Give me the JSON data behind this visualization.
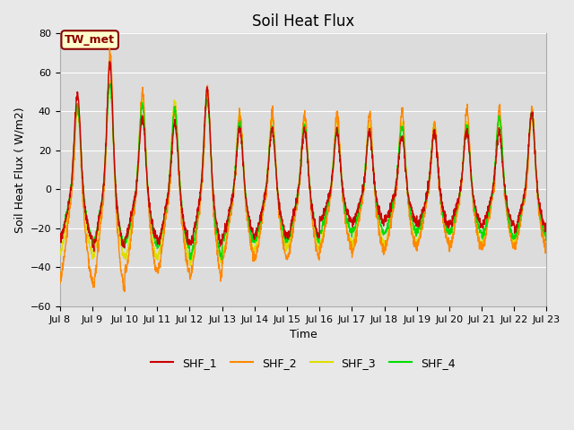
{
  "title": "Soil Heat Flux",
  "xlabel": "Time",
  "ylabel": "Soil Heat Flux ( W/m2)",
  "ylim": [
    -60,
    80
  ],
  "yticks": [
    -60,
    -40,
    -20,
    0,
    20,
    40,
    60,
    80
  ],
  "xtick_labels": [
    "Jul 8",
    "Jul 9",
    "Jul 10",
    "Jul 11",
    "Jul 12",
    "Jul 13",
    "Jul 14",
    "Jul 15",
    "Jul 16",
    "Jul 17",
    "Jul 18",
    "Jul 19",
    "Jul 20",
    "Jul 21",
    "Jul 22",
    "Jul 23"
  ],
  "line_colors": {
    "SHF_1": "#cc0000",
    "SHF_2": "#ff8800",
    "SHF_3": "#dddd00",
    "SHF_4": "#00dd00"
  },
  "legend_label": "TW_met",
  "legend_box_facecolor": "#ffffcc",
  "legend_box_edgecolor": "#8b0000",
  "fig_facecolor": "#e8e8e8",
  "plot_facecolor": "#dcdcdc",
  "title_fontsize": 12,
  "axis_label_fontsize": 9,
  "tick_fontsize": 8,
  "day_amplitudes": {
    "SHF_1": [
      50,
      65,
      38,
      35,
      52,
      32,
      31,
      31,
      29,
      30,
      28,
      30,
      30,
      30,
      40,
      28
    ],
    "SHF_2": [
      45,
      72,
      52,
      43,
      53,
      40,
      40,
      40,
      40,
      40,
      42,
      35,
      42,
      42,
      42,
      38
    ],
    "SHF_3": [
      44,
      56,
      47,
      47,
      48,
      40,
      38,
      37,
      36,
      35,
      35,
      34,
      35,
      36,
      38,
      30
    ],
    "SHF_4": [
      44,
      55,
      44,
      42,
      47,
      35,
      33,
      34,
      31,
      30,
      33,
      30,
      33,
      38,
      40,
      30
    ]
  },
  "day_night_amps": {
    "SHF_1": [
      -25,
      -30,
      -25,
      -28,
      -28,
      -24,
      -23,
      -24,
      -16,
      -17,
      -16,
      -18,
      -18,
      -18,
      -20,
      -22
    ],
    "SHF_2": [
      -45,
      -50,
      -42,
      -42,
      -45,
      -35,
      -35,
      -35,
      -30,
      -32,
      -30,
      -28,
      -30,
      -30,
      -30,
      -32
    ],
    "SHF_3": [
      -32,
      -35,
      -35,
      -35,
      -38,
      -32,
      -30,
      -30,
      -28,
      -28,
      -28,
      -27,
      -28,
      -28,
      -28,
      -30
    ],
    "SHF_4": [
      -24,
      -28,
      -28,
      -30,
      -35,
      -27,
      -26,
      -26,
      -22,
      -22,
      -22,
      -22,
      -22,
      -24,
      -24,
      -26
    ]
  }
}
